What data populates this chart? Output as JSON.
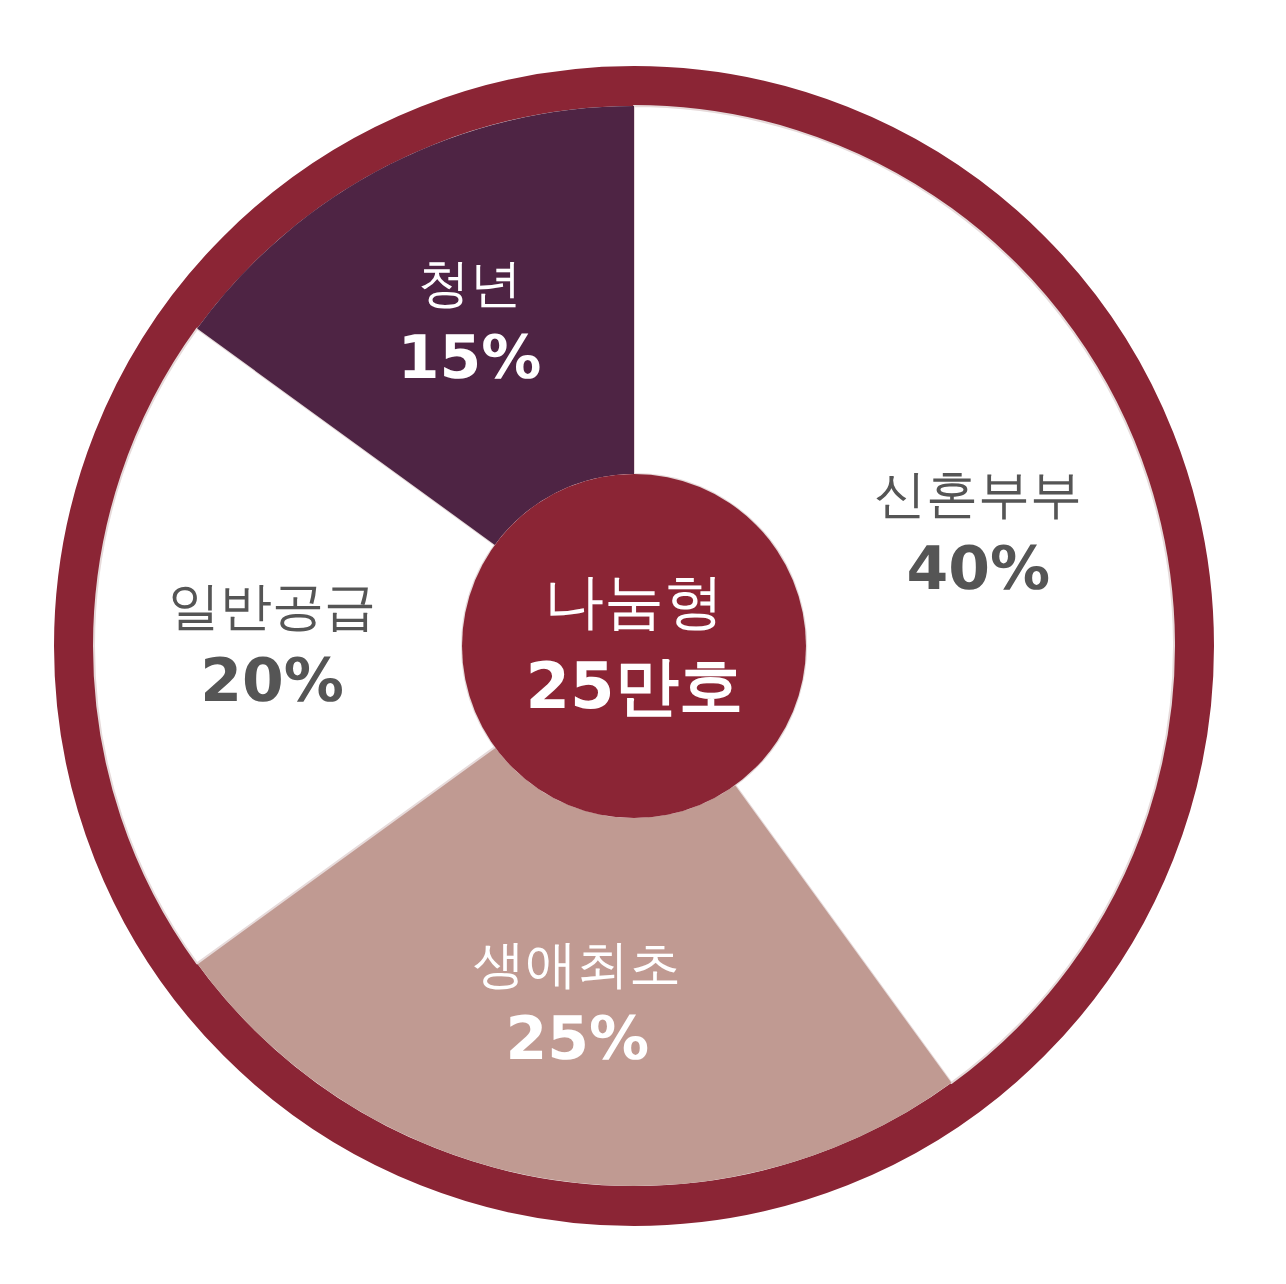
{
  "chart_data": {
    "type": "donut",
    "title": "나눔형",
    "subtitle": "25만호",
    "categories": [
      "신혼부부",
      "생애최초",
      "일반공급",
      "청년"
    ],
    "values": [
      40,
      25,
      20,
      15
    ],
    "value_labels": [
      "40%",
      "25%",
      "20%",
      "15%"
    ],
    "colors": [
      "#ffffff",
      "#c09a92",
      "#ffffff",
      "#4e2444"
    ],
    "legend": false
  }
}
